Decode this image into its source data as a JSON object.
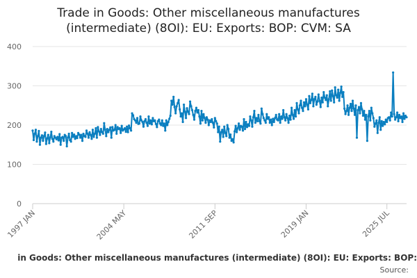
{
  "chart_data": {
    "type": "line",
    "title_line1": "Trade in Goods: Other miscellaneous manufactures",
    "title_line2": "(intermediate) (8OI): EU: Exports: BOP: CVM: SA",
    "legend_text": "in Goods: Other miscellaneous manufactures (intermediate) (8OI): EU: Exports: BOP:",
    "source_label": "Source:",
    "xlabel": "",
    "ylabel": "",
    "ylim": [
      0,
      400
    ],
    "y_ticks": [
      0,
      100,
      200,
      300,
      400
    ],
    "x_ticks": [
      {
        "label": "1997 JAN",
        "index": 0
      },
      {
        "label": "2004 MAY",
        "index": 88
      },
      {
        "label": "2011 SEP",
        "index": 176
      },
      {
        "label": "2019 JAN",
        "index": 264
      },
      {
        "label": "2025 JUL",
        "index": 342
      }
    ],
    "series": [
      {
        "name": "Trade in Goods: Other miscellaneous manufactures (intermediate) (8OI): EU: Exports: BOP: CVM: SA",
        "color": "#0b7fc0",
        "start": "1997 JAN",
        "values": [
          186,
          162,
          178,
          188,
          158,
          172,
          185,
          150,
          168,
          174,
          160,
          172,
          181,
          152,
          166,
          175,
          154,
          169,
          183,
          165,
          158,
          172,
          168,
          164,
          170,
          161,
          177,
          150,
          168,
          170,
          160,
          175,
          172,
          146,
          168,
          178,
          162,
          158,
          180,
          170,
          176,
          165,
          172,
          167,
          180,
          176,
          168,
          175,
          160,
          178,
          172,
          170,
          186,
          178,
          168,
          182,
          175,
          165,
          188,
          170,
          178,
          192,
          168,
          195,
          184,
          175,
          190,
          182,
          178,
          205,
          188,
          172,
          190,
          182,
          188,
          194,
          168,
          195,
          186,
          188,
          200,
          178,
          195,
          190,
          192,
          180,
          198,
          186,
          189,
          192,
          183,
          196,
          182,
          199,
          192,
          186,
          230,
          225,
          215,
          212,
          206,
          218,
          203,
          204,
          222,
          212,
          208,
          196,
          210,
          215,
          206,
          198,
          222,
          204,
          212,
          202,
          218,
          210,
          212,
          203,
          195,
          210,
          214,
          204,
          200,
          212,
          198,
          204,
          186,
          212,
          200,
          208,
          216,
          224,
          262,
          252,
          272,
          246,
          230,
          248,
          256,
          264,
          240,
          222,
          230,
          208,
          252,
          234,
          218,
          243,
          234,
          228,
          260,
          248,
          238,
          226,
          214,
          236,
          244,
          232,
          238,
          222,
          204,
          236,
          212,
          228,
          218,
          206,
          220,
          214,
          200,
          212,
          208,
          215,
          206,
          194,
          218,
          210,
          204,
          182,
          196,
          158,
          182,
          188,
          170,
          196,
          180,
          172,
          200,
          190,
          168,
          176,
          160,
          164,
          156,
          184,
          198,
          182,
          192,
          204,
          188,
          198,
          196,
          186,
          215,
          190,
          208,
          195,
          202,
          198,
          222,
          212,
          196,
          220,
          236,
          206,
          218,
          210,
          226,
          210,
          204,
          242,
          228,
          218,
          212,
          206,
          228,
          216,
          220,
          206,
          214,
          200,
          216,
          208,
          218,
          226,
          214,
          212,
          228,
          206,
          222,
          216,
          238,
          220,
          212,
          228,
          218,
          206,
          224,
          214,
          244,
          226,
          216,
          238,
          222,
          256,
          240,
          230,
          250,
          262,
          244,
          236,
          258,
          248,
          266,
          252,
          240,
          274,
          256,
          264,
          280,
          248,
          266,
          272,
          252,
          260,
          278,
          262,
          246,
          270,
          258,
          284,
          270,
          264,
          276,
          248,
          266,
          286,
          262,
          288,
          274,
          258,
          296,
          276,
          270,
          290,
          262,
          282,
          298,
          272,
          284,
          242,
          228,
          236,
          250,
          226,
          244,
          254,
          236,
          262,
          242,
          226,
          250,
          168,
          238,
          246,
          230,
          256,
          240,
          224,
          236,
          214,
          226,
          160,
          222,
          236,
          212,
          244,
          230,
          218,
          196,
          204,
          212,
          180,
          206,
          220,
          188,
          210,
          198,
          208,
          202,
          214,
          208,
          218,
          220,
          212,
          232,
          222,
          334,
          228,
          214,
          220,
          232,
          210,
          226,
          218,
          222,
          208,
          230,
          216,
          224,
          220
        ]
      }
    ]
  },
  "colors": {
    "line": "#0b7fc0",
    "grid": "#e6e6e6",
    "axis": "#cccccc",
    "text": "#666666"
  }
}
